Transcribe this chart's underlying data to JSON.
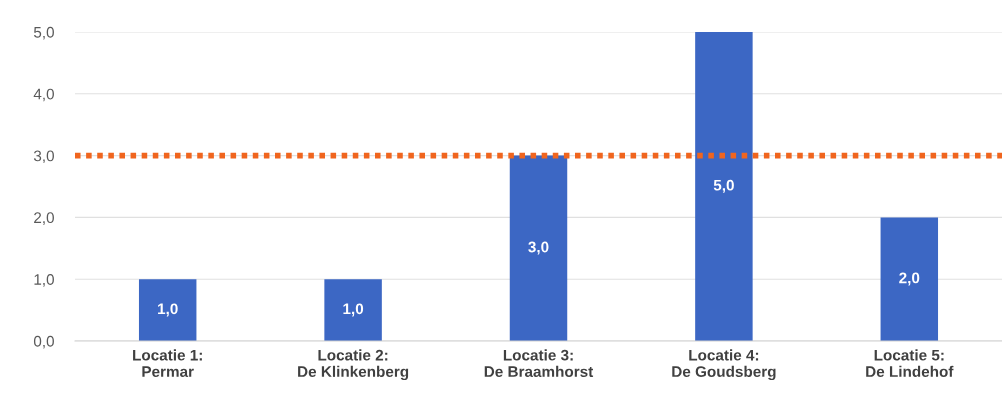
{
  "chart_data": {
    "type": "bar",
    "categories": [
      "Locatie 1:\nPermar",
      "Locatie 2:\nDe Klinkenberg",
      "Locatie 3:\nDe Braamhorst",
      "Locatie 4:\nDe Goudsberg",
      "Locatie 5:\nDe Lindehof"
    ],
    "values": [
      1.0,
      1.0,
      3.0,
      5.0,
      2.0
    ],
    "value_labels": [
      "1,0",
      "1,0",
      "3,0",
      "5,0",
      "2,0"
    ],
    "color": "#3c67c4",
    "ylim": [
      0,
      5
    ],
    "yticks": [
      {
        "value": 0,
        "label": "0,0"
      },
      {
        "value": 1,
        "label": "1,0"
      },
      {
        "value": 2,
        "label": "2,0"
      },
      {
        "value": 3,
        "label": "3,0"
      },
      {
        "value": 4,
        "label": "4,0"
      },
      {
        "value": 5,
        "label": "5,0"
      }
    ],
    "grid": "y",
    "ref_lines": [
      {
        "axis": "y",
        "value": 3,
        "color": "#f0651e",
        "line_style": "dotted"
      }
    ]
  }
}
